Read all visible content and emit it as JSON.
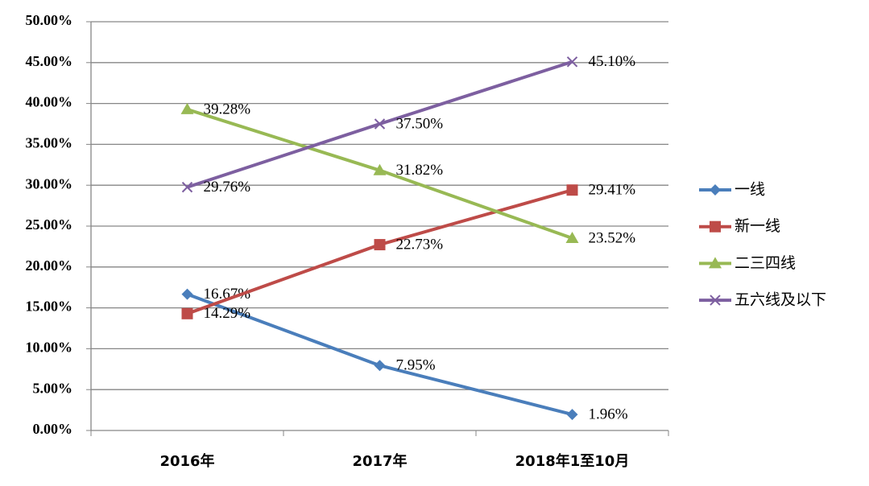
{
  "chart_data": {
    "type": "line",
    "categories": [
      "2016年",
      "2017年",
      "2018年1至10月"
    ],
    "series": [
      {
        "name": "一线",
        "color": "#4a7ebb",
        "marker": "diamond",
        "values": [
          16.67,
          7.95,
          1.96
        ],
        "value_labels": [
          "16.67%",
          "7.95%",
          "1.96%"
        ]
      },
      {
        "name": "新一线",
        "color": "#be4b48",
        "marker": "square",
        "values": [
          14.29,
          22.73,
          29.41
        ],
        "value_labels": [
          "14.29%",
          "22.73%",
          "29.41%"
        ]
      },
      {
        "name": "二三四线",
        "color": "#98b954",
        "marker": "triangle",
        "values": [
          39.28,
          31.82,
          23.52
        ],
        "value_labels": [
          "39.28%",
          "31.82%",
          "23.52%"
        ]
      },
      {
        "name": "五六线及以下",
        "color": "#7d5fa0",
        "marker": "x",
        "values": [
          29.76,
          37.5,
          45.1
        ],
        "value_labels": [
          "29.76%",
          "37.50%",
          "45.10%"
        ]
      }
    ],
    "ylim": [
      0,
      50
    ],
    "yticks": [
      {
        "value": 0,
        "label": "0.00%"
      },
      {
        "value": 5,
        "label": "5.00%"
      },
      {
        "value": 10,
        "label": "10.00%"
      },
      {
        "value": 15,
        "label": "15.00%"
      },
      {
        "value": 20,
        "label": "20.00%"
      },
      {
        "value": 25,
        "label": "25.00%"
      },
      {
        "value": 30,
        "label": "30.00%"
      },
      {
        "value": 35,
        "label": "35.00%"
      },
      {
        "value": 40,
        "label": "40.00%"
      },
      {
        "value": 45,
        "label": "45.00%"
      },
      {
        "value": 50,
        "label": "50.00%"
      }
    ],
    "grid": true,
    "legend": "right"
  }
}
